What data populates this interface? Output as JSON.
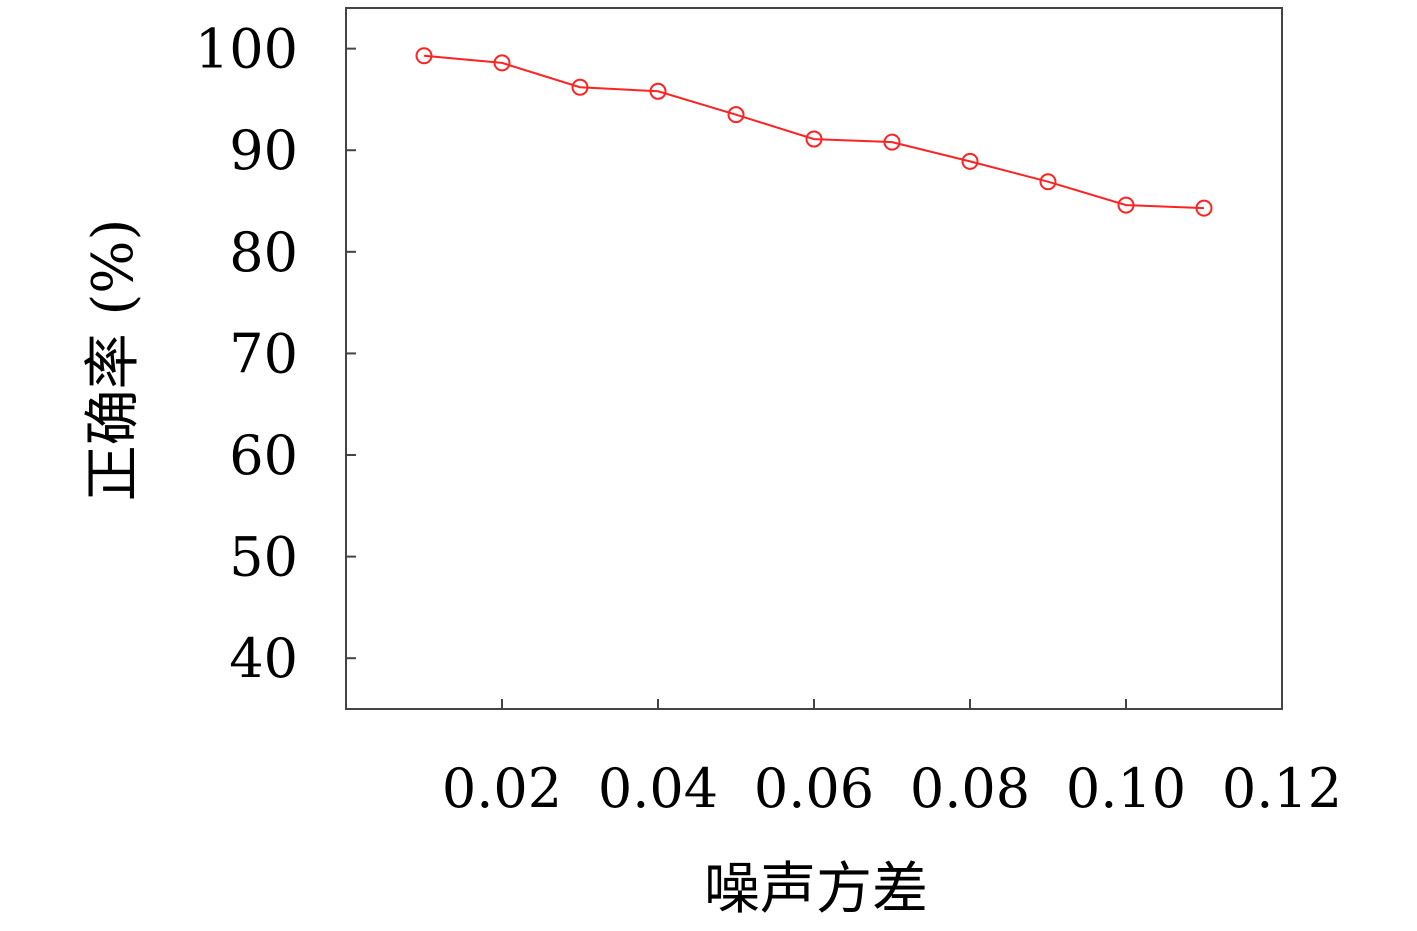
{
  "chart_data": {
    "type": "line",
    "xlabel": "噪声方差",
    "ylabel": "正确率 (%)",
    "xlim": [
      0.0,
      0.12
    ],
    "ylim": [
      35,
      104
    ],
    "xticks": [
      {
        "value": 0.02,
        "label": "0.02"
      },
      {
        "value": 0.04,
        "label": "0.04"
      },
      {
        "value": 0.06,
        "label": "0.06"
      },
      {
        "value": 0.08,
        "label": "0.08"
      },
      {
        "value": 0.1,
        "label": "0.10"
      },
      {
        "value": 0.12,
        "label": "0.12"
      }
    ],
    "yticks": [
      {
        "value": 40,
        "label": "40"
      },
      {
        "value": 50,
        "label": "50"
      },
      {
        "value": 60,
        "label": "60"
      },
      {
        "value": 70,
        "label": "70"
      },
      {
        "value": 80,
        "label": "80"
      },
      {
        "value": 90,
        "label": "90"
      },
      {
        "value": 100,
        "label": "100"
      }
    ],
    "grid": false,
    "series": [
      {
        "color": "#ff2222",
        "marker": "open-circle",
        "x": [
          0.01,
          0.02,
          0.03,
          0.04,
          0.05,
          0.06,
          0.07,
          0.08,
          0.09,
          0.1,
          0.11
        ],
        "y": [
          99.3,
          98.6,
          96.2,
          95.8,
          93.5,
          91.1,
          90.8,
          88.9,
          86.9,
          84.6,
          84.3
        ]
      }
    ]
  }
}
